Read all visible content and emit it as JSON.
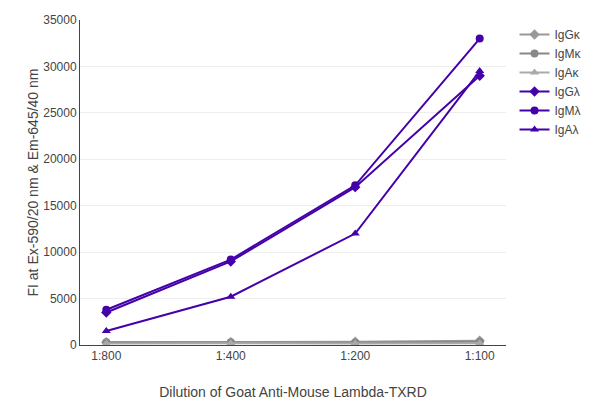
{
  "chart_data": {
    "type": "line",
    "xlabel": "Dilution of Goat Anti-Mouse Lambda-TXRD",
    "ylabel": "FI at Ex-590/20 nm & Em-645/40 nm",
    "categories": [
      "1:800",
      "1:400",
      "1:200",
      "1:100"
    ],
    "series": [
      {
        "name": "IgGκ",
        "color": "#999999",
        "marker": "diamond",
        "values": [
          300,
          300,
          350,
          450
        ]
      },
      {
        "name": "IgMκ",
        "color": "#888888",
        "marker": "circle",
        "values": [
          300,
          300,
          250,
          350
        ]
      },
      {
        "name": "IgAκ",
        "color": "#aaaaaa",
        "marker": "triangle",
        "values": [
          150,
          200,
          150,
          200
        ]
      },
      {
        "name": "IgGλ",
        "color": "#4400aa",
        "marker": "diamond",
        "values": [
          3500,
          9000,
          17000,
          29000
        ]
      },
      {
        "name": "IgMλ",
        "color": "#4400aa",
        "marker": "circle",
        "values": [
          3800,
          9200,
          17200,
          33000
        ]
      },
      {
        "name": "IgAλ",
        "color": "#4400aa",
        "marker": "triangle",
        "values": [
          1500,
          5200,
          12000,
          29500
        ]
      }
    ],
    "ylim": [
      0,
      35000
    ],
    "yticks": [
      0,
      5000,
      10000,
      15000,
      20000,
      25000,
      30000,
      35000
    ],
    "grid": true,
    "legend": "right"
  }
}
